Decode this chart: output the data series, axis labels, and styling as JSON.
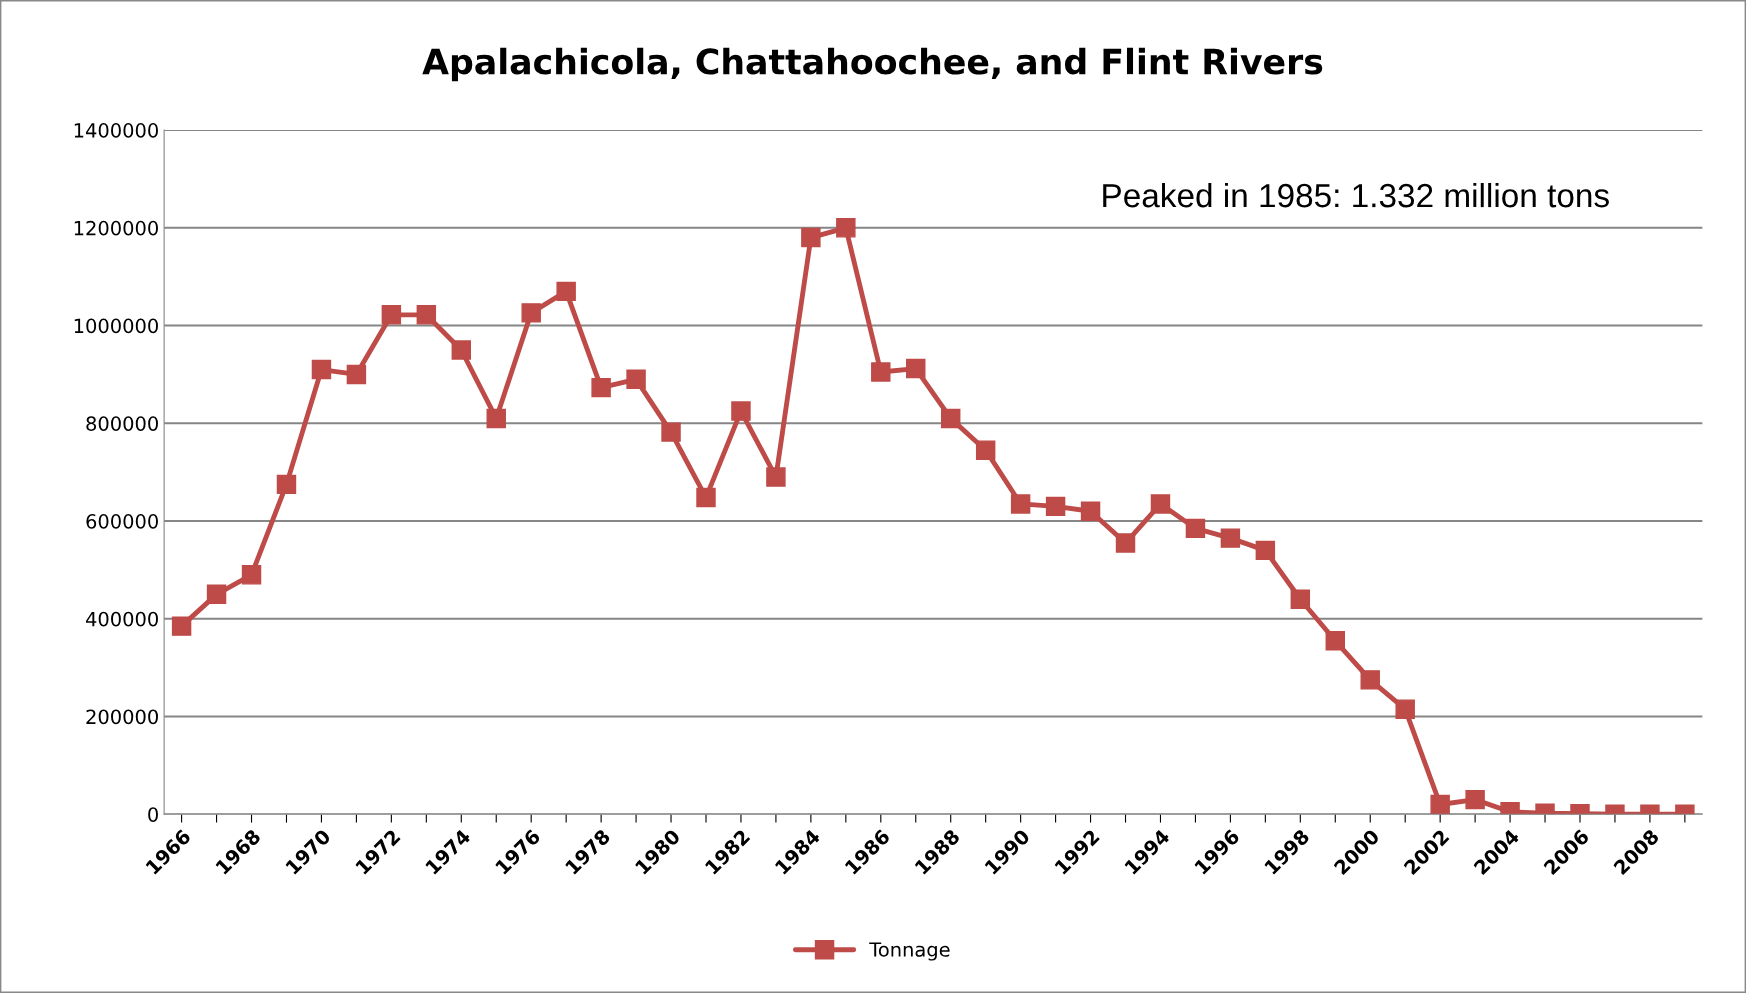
{
  "chart_data": {
    "type": "line",
    "title": "Apalachicola, Chattahoochee, and Flint Rivers",
    "categories": [
      "1966",
      null,
      "1968",
      null,
      "1970",
      null,
      "1972",
      null,
      "1974",
      null,
      "1976",
      null,
      "1978",
      null,
      "1980",
      null,
      "1982",
      null,
      "1984",
      null,
      "1986",
      null,
      "1988",
      null,
      "1990",
      null,
      "1992",
      null,
      "1994",
      null,
      "1996",
      null,
      "1998",
      null,
      "2000",
      null,
      "2002",
      null,
      "2004",
      null,
      "2006",
      null,
      "2008",
      null
    ],
    "series": [
      {
        "name": "Tonnage",
        "color": "#be4b48",
        "values": [
          385000,
          450000,
          490000,
          675000,
          910000,
          900000,
          1022000,
          1022000,
          950000,
          810000,
          1026000,
          1070000,
          873000,
          890000,
          782000,
          648000,
          825000,
          690000,
          1180000,
          1200000,
          905000,
          912000,
          810000,
          745000,
          635000,
          630000,
          620000,
          555000,
          635000,
          585000,
          565000,
          540000,
          440000,
          355000,
          275000,
          215000,
          20000,
          30000,
          5000,
          2000,
          1000,
          0,
          0,
          0
        ]
      }
    ],
    "ylim": [
      0,
      1400000
    ],
    "yticks": [
      0,
      200000,
      400000,
      600000,
      800000,
      1000000,
      1200000,
      1400000
    ],
    "grid": "y",
    "legend": "bottom",
    "marker": "square",
    "line_style": "solid",
    "annotations": [
      "Peaked in 1985: 1.332 million tons"
    ]
  }
}
